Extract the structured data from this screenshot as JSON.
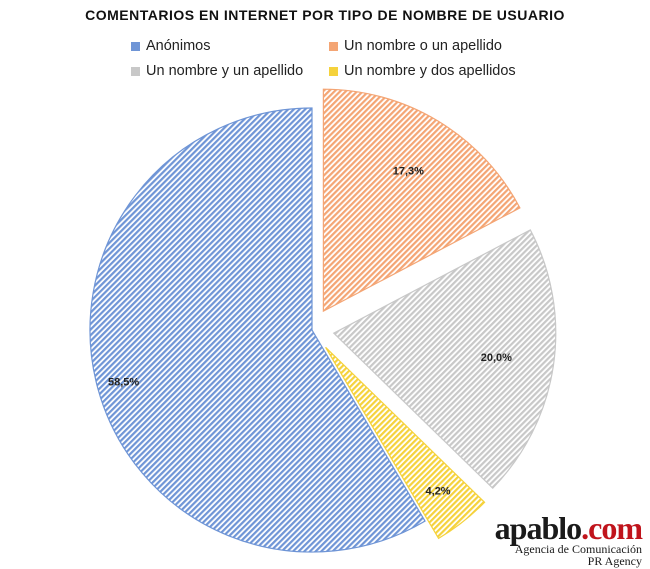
{
  "chart_data": {
    "type": "pie",
    "title": "COMENTARIOS EN INTERNET POR TIPO DE NOMBRE DE USUARIO",
    "categories": [
      "Un nombre o un apellido",
      "Un nombre y un apellido",
      "Un nombre y dos apellidos",
      "Anónimos"
    ],
    "values": [
      17.3,
      20.0,
      4.2,
      58.5
    ],
    "data_labels": [
      "17,3%",
      "20,0%",
      "4,2%",
      "58,5%"
    ],
    "colors": [
      "#f4a574",
      "#c8c8c8",
      "#f5d23c",
      "#6f95d6"
    ],
    "exploded": [
      true,
      true,
      true,
      false
    ],
    "legend": {
      "placement": "top",
      "entries": [
        "Anónimos",
        "Un nombre o un apellido",
        "Un nombre y un apellido",
        "Un nombre y dos apellidos"
      ]
    }
  },
  "logo": {
    "name": "apablo",
    "domain": ".com",
    "line1": "Agencia de Comunicación",
    "line2": "PR Agency"
  }
}
